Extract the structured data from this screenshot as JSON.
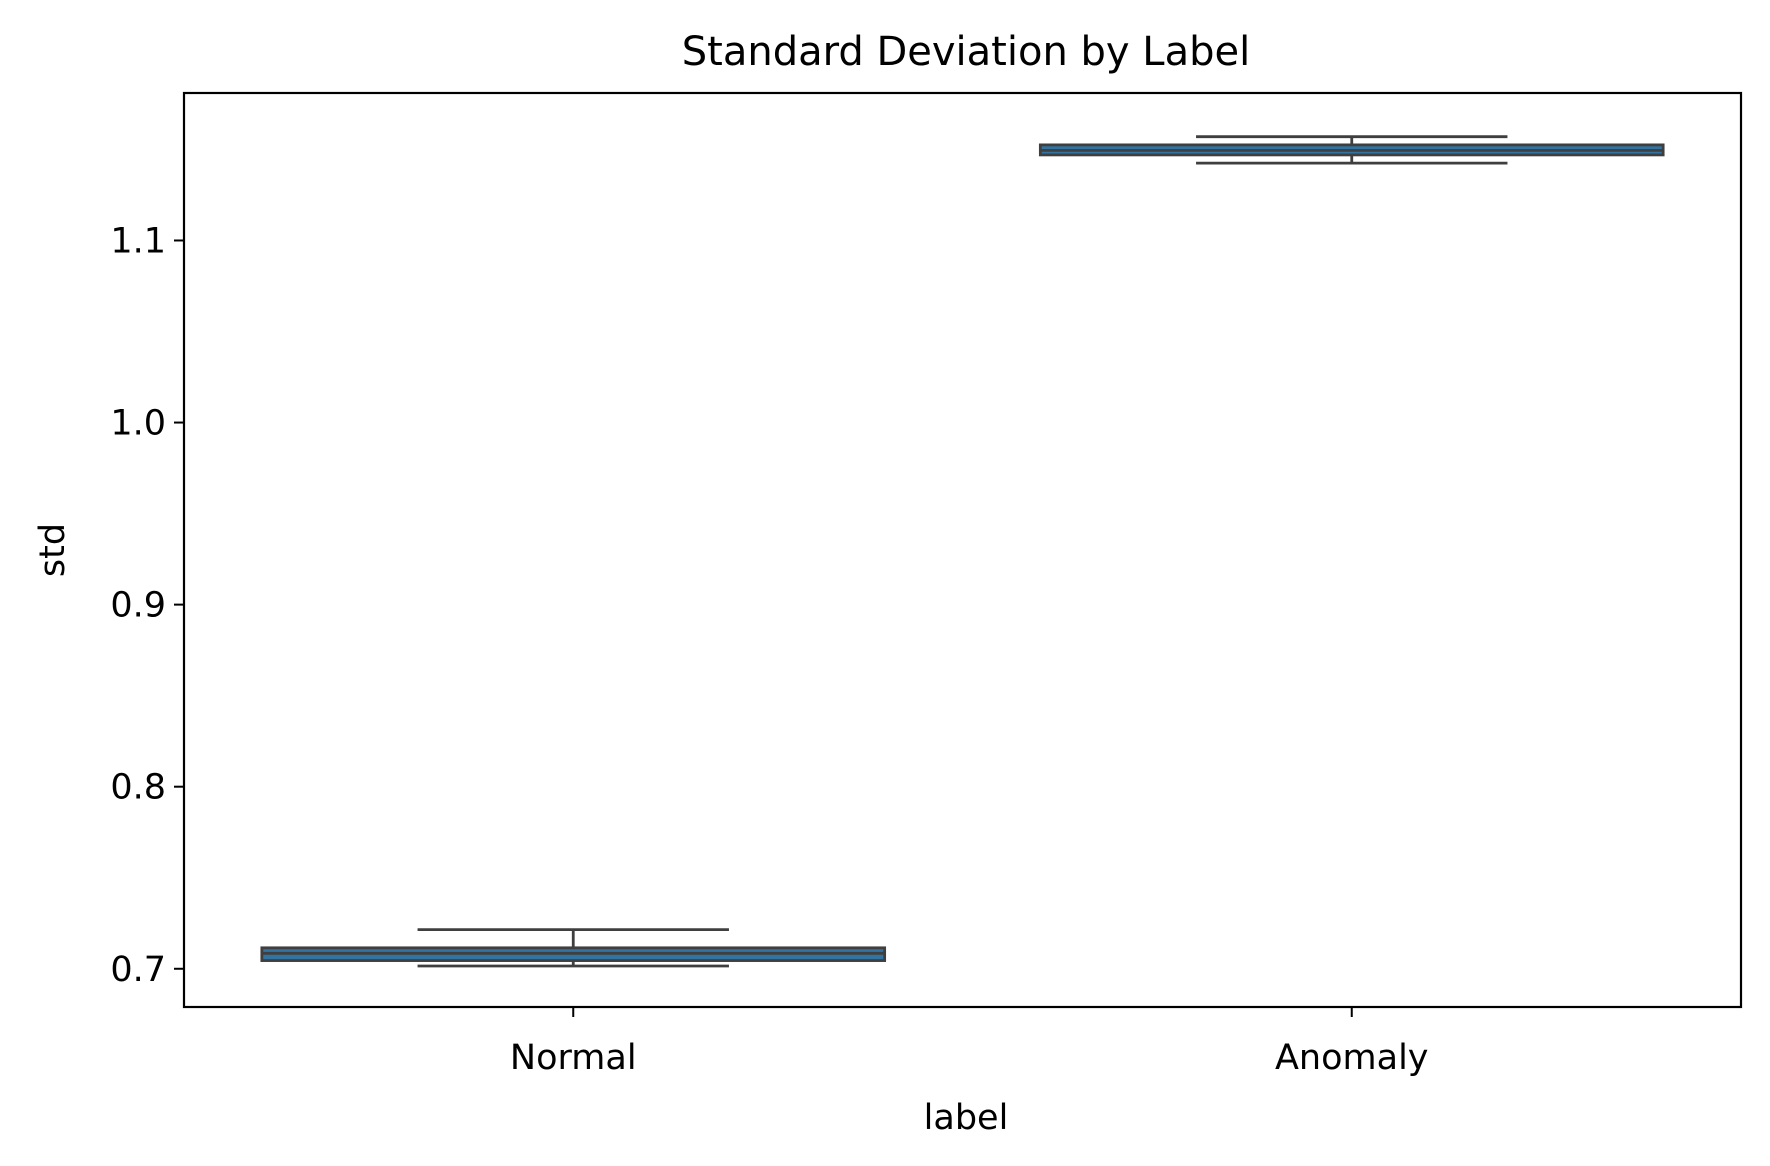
{
  "chart_data": {
    "type": "box",
    "title": "Standard Deviation by Label",
    "xlabel": "label",
    "ylabel": "std",
    "categories": [
      "Normal",
      "Anomaly"
    ],
    "boxes": [
      {
        "category": "Normal",
        "whisker_low": 0.7015,
        "q1": 0.7045,
        "median": 0.7085,
        "q3": 0.7115,
        "whisker_high": 0.7215
      },
      {
        "category": "Anomaly",
        "whisker_low": 1.1425,
        "q1": 1.147,
        "median": 1.1495,
        "q3": 1.1525,
        "whisker_high": 1.157
      }
    ],
    "ylim": [
      0.679,
      1.181
    ],
    "yticks": [
      0.7,
      0.8,
      0.9,
      1.0,
      1.1
    ],
    "ytick_labels": [
      "0.7",
      "0.8",
      "0.9",
      "1.0",
      "1.1"
    ],
    "grid": false,
    "legend": "none",
    "colors": {
      "box_fill": "#3274a1",
      "box_edge": "#3f3f3f",
      "axis": "#000000"
    }
  }
}
